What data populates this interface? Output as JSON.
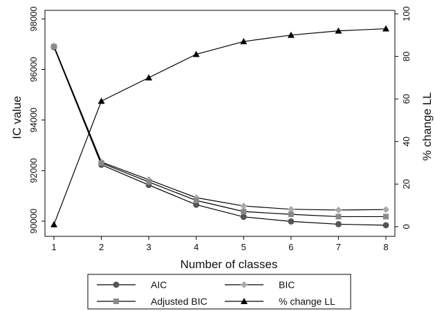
{
  "chart_data": {
    "type": "line",
    "x": [
      1,
      2,
      3,
      4,
      5,
      6,
      7,
      8
    ],
    "xlabel": "Number of classes",
    "ylabel": "IC value",
    "y2label": "% change LL",
    "xlim": [
      1,
      8
    ],
    "ylim": [
      89700,
      98200
    ],
    "y2lim": [
      -1,
      100
    ],
    "xticks": [
      "1",
      "2",
      "3",
      "4",
      "5",
      "6",
      "7",
      "8"
    ],
    "yticks": [
      "90000",
      "92000",
      "94000",
      "96000",
      "98000"
    ],
    "y2ticks": [
      "0",
      "20",
      "40",
      "60",
      "80",
      "100"
    ],
    "grid": false,
    "legend_position": "bottom",
    "series": [
      {
        "name": "AIC",
        "axis": "left",
        "marker": "circle",
        "color": "#555555",
        "values": [
          96880,
          92230,
          91430,
          90650,
          90170,
          89990,
          89880,
          89840
        ]
      },
      {
        "name": "BIC",
        "axis": "left",
        "marker": "diamond",
        "color": "#aaaaaa",
        "values": [
          96930,
          92340,
          91640,
          90930,
          90600,
          90470,
          90440,
          90460
        ]
      },
      {
        "name": "Adjusted BIC",
        "axis": "left",
        "marker": "square",
        "color": "#8a8a8a",
        "values": [
          96900,
          92300,
          91550,
          90820,
          90380,
          90270,
          90180,
          90180
        ]
      },
      {
        "name": "% change LL",
        "axis": "right",
        "marker": "triangle",
        "color": "#000000",
        "values": [
          1,
          59,
          70,
          81,
          87,
          90,
          92,
          93
        ]
      }
    ]
  }
}
